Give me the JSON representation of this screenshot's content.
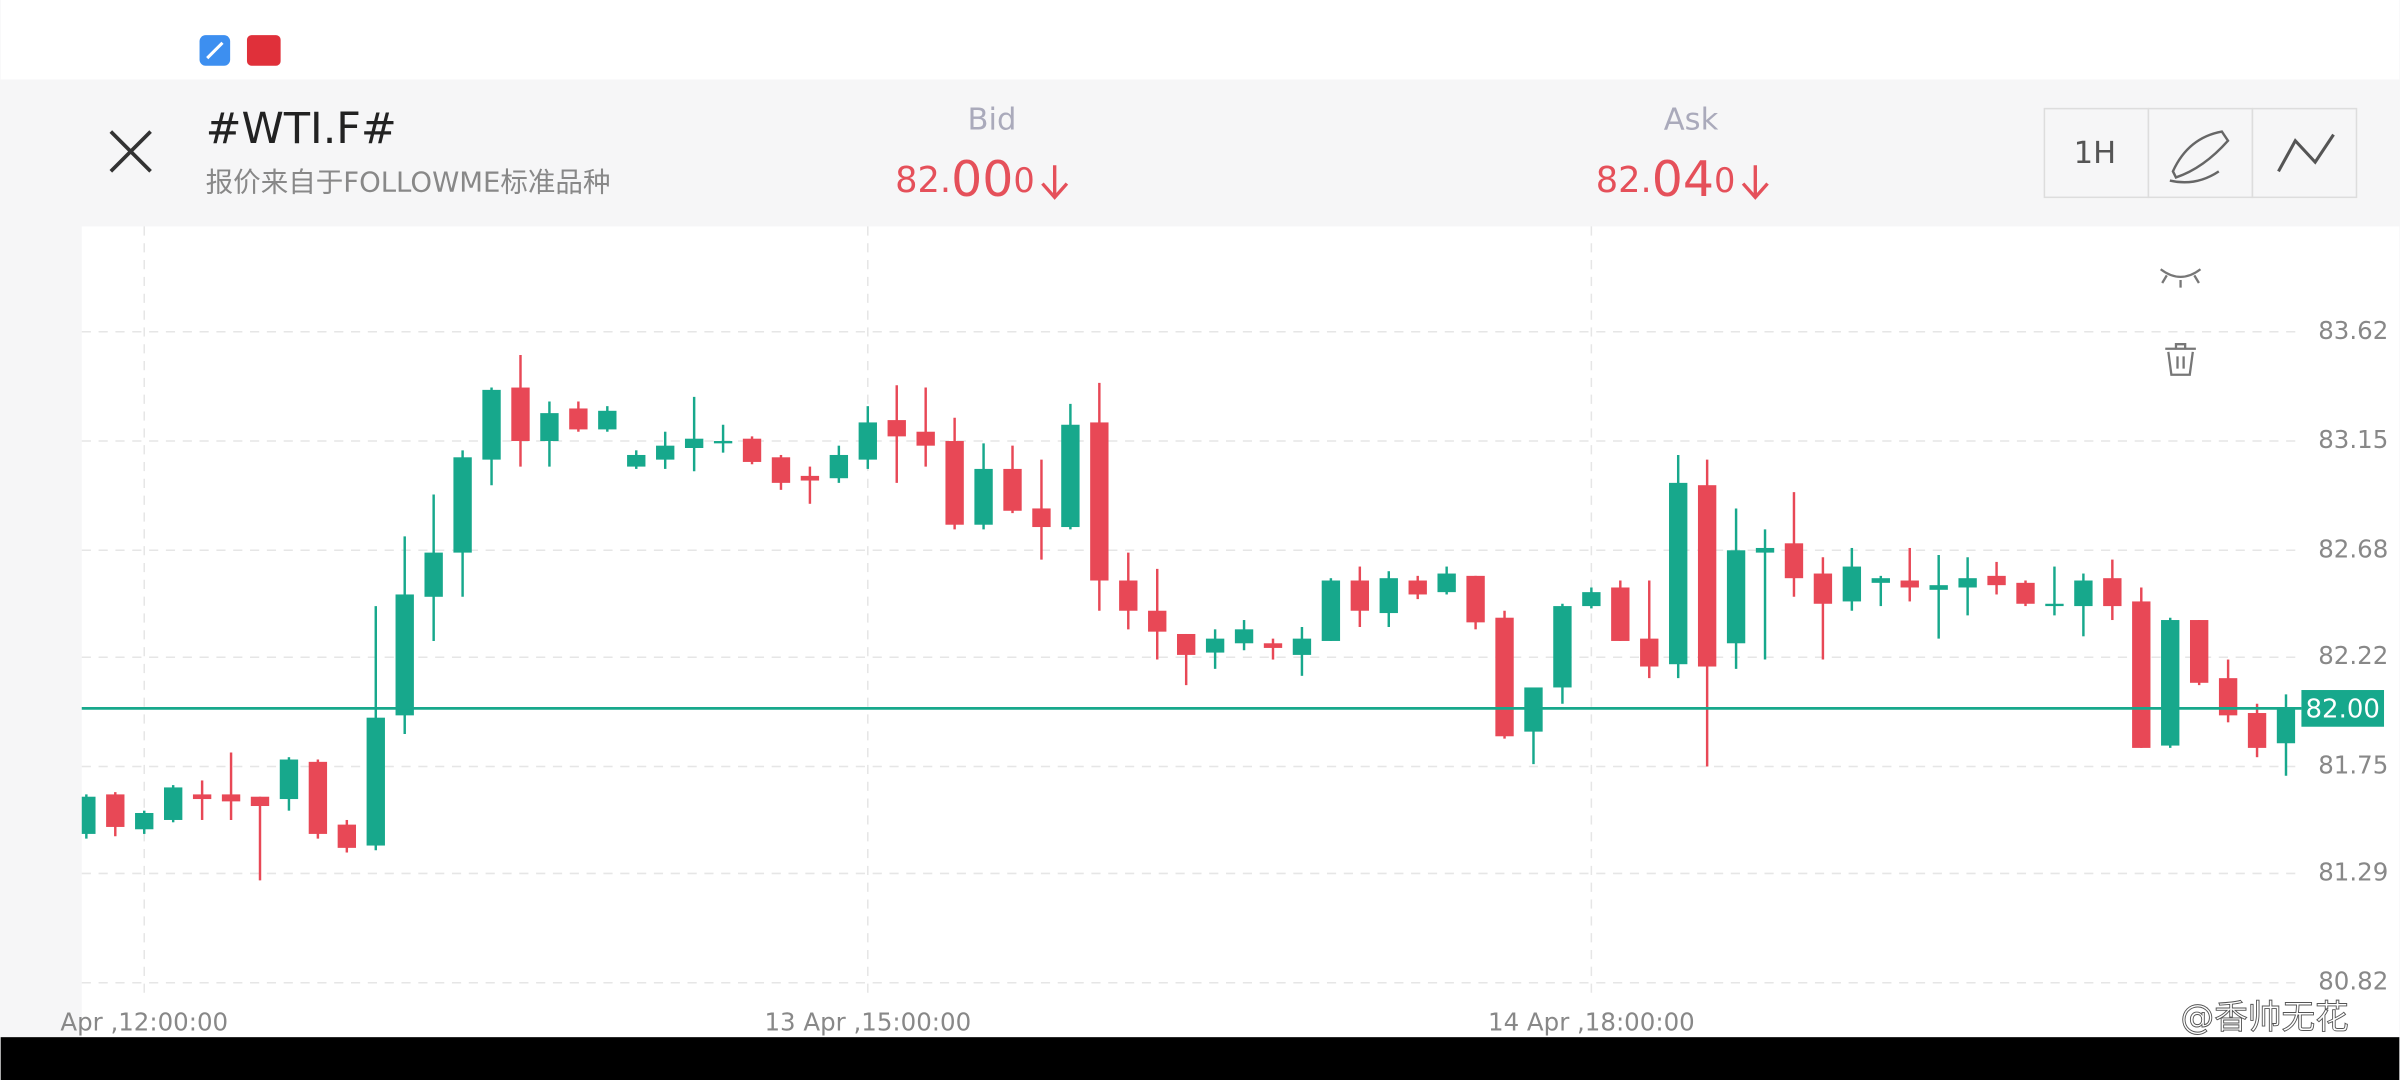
{
  "header": {
    "title": "#WTI.F#",
    "subtitle": "报价来自于FOLLOWME标准品种",
    "bid": {
      "label": "Bid",
      "parts": [
        "82.",
        "00",
        "0"
      ]
    },
    "ask": {
      "label": "Ask",
      "parts": [
        "82.",
        "04",
        "0"
      ]
    },
    "timeframe": "1H"
  },
  "watermark": "@香帅无花",
  "chart_data": {
    "type": "candlestick",
    "categories": [
      null,
      null,
      "Apr ,12:00:00",
      null,
      null,
      null,
      null,
      null,
      null,
      null,
      null,
      null,
      null,
      null,
      null,
      null,
      null,
      null,
      null,
      null,
      null,
      null,
      null,
      null,
      null,
      null,
      null,
      "13 Apr ,15:00:00",
      null,
      null,
      null,
      null,
      null,
      null,
      null,
      null,
      null,
      null,
      null,
      null,
      null,
      null,
      null,
      null,
      null,
      null,
      null,
      null,
      null,
      null,
      null,
      null,
      "14 Apr ,18:00:00",
      null,
      null,
      null,
      null,
      null,
      null,
      null,
      null,
      null,
      null,
      null,
      null,
      null,
      null,
      null,
      null,
      null,
      null,
      null,
      null,
      null,
      null,
      null,
      null
    ],
    "open": [
      81.46,
      81.63,
      81.48,
      81.52,
      81.63,
      81.63,
      81.62,
      81.61,
      81.77,
      81.5,
      81.41,
      81.97,
      82.48,
      82.67,
      83.07,
      83.38,
      83.15,
      83.29,
      83.2,
      83.04,
      83.07,
      83.12,
      83.14,
      83.16,
      83.08,
      83.0,
      82.99,
      83.07,
      83.24,
      83.19,
      83.15,
      82.79,
      83.03,
      82.86,
      82.78,
      83.23,
      82.55,
      82.42,
      82.32,
      82.24,
      82.28,
      82.28,
      82.23,
      82.29,
      82.55,
      82.41,
      82.55,
      82.5,
      82.57,
      82.39,
      81.9,
      82.09,
      82.44,
      82.52,
      82.3,
      82.19,
      82.96,
      82.28,
      82.67,
      82.71,
      82.58,
      82.46,
      82.54,
      82.55,
      82.51,
      82.52,
      82.57,
      82.54,
      82.44,
      82.44,
      82.56,
      82.46,
      81.84,
      82.38,
      82.13,
      81.98,
      81.85
    ],
    "high": [
      81.63,
      81.64,
      81.56,
      81.67,
      81.69,
      81.81,
      81.62,
      81.79,
      81.78,
      81.52,
      82.44,
      82.74,
      82.92,
      83.11,
      83.38,
      83.52,
      83.32,
      83.32,
      83.3,
      83.11,
      83.19,
      83.34,
      83.22,
      83.17,
      83.09,
      83.04,
      83.13,
      83.3,
      83.39,
      83.38,
      83.25,
      83.14,
      83.13,
      83.07,
      83.31,
      83.4,
      82.67,
      82.6,
      82.32,
      82.34,
      82.38,
      82.3,
      82.35,
      82.56,
      82.61,
      82.59,
      82.57,
      82.61,
      82.57,
      82.42,
      82.09,
      82.45,
      82.52,
      82.55,
      82.55,
      83.09,
      83.07,
      82.86,
      82.77,
      82.93,
      82.65,
      82.69,
      82.57,
      82.69,
      82.66,
      82.65,
      82.63,
      82.55,
      82.61,
      82.58,
      82.64,
      82.52,
      82.39,
      82.38,
      82.21,
      82.02,
      82.06
    ],
    "low": [
      81.44,
      81.45,
      81.46,
      81.51,
      81.52,
      81.52,
      81.26,
      81.56,
      81.44,
      81.38,
      81.39,
      81.89,
      82.29,
      82.48,
      82.96,
      83.04,
      83.04,
      83.19,
      83.19,
      83.03,
      83.03,
      83.02,
      83.1,
      83.05,
      82.94,
      82.88,
      82.97,
      83.03,
      82.97,
      83.04,
      82.77,
      82.77,
      82.84,
      82.64,
      82.77,
      82.42,
      82.34,
      82.21,
      82.1,
      82.17,
      82.25,
      82.21,
      82.14,
      82.29,
      82.35,
      82.35,
      82.47,
      82.49,
      82.34,
      81.87,
      81.76,
      82.02,
      82.43,
      82.29,
      82.13,
      82.13,
      81.75,
      82.17,
      82.21,
      82.48,
      82.21,
      82.42,
      82.44,
      82.46,
      82.3,
      82.4,
      82.49,
      82.44,
      82.4,
      82.31,
      82.38,
      81.83,
      81.83,
      82.1,
      81.94,
      81.79,
      81.71
    ],
    "close": [
      81.62,
      81.49,
      81.55,
      81.66,
      81.61,
      81.6,
      81.58,
      81.78,
      81.46,
      81.4,
      81.96,
      82.49,
      82.67,
      83.08,
      83.37,
      83.15,
      83.27,
      83.2,
      83.28,
      83.09,
      83.13,
      83.16,
      83.15,
      83.06,
      82.97,
      82.98,
      83.09,
      83.23,
      83.17,
      83.13,
      82.79,
      83.03,
      82.85,
      82.78,
      83.22,
      82.55,
      82.42,
      82.33,
      82.23,
      82.3,
      82.34,
      82.26,
      82.3,
      82.55,
      82.42,
      82.56,
      82.49,
      82.58,
      82.37,
      81.88,
      82.09,
      82.44,
      82.5,
      82.29,
      82.18,
      82.97,
      82.18,
      82.68,
      82.69,
      82.56,
      82.45,
      82.61,
      82.56,
      82.52,
      82.53,
      82.56,
      82.53,
      82.45,
      82.45,
      82.55,
      82.44,
      81.83,
      82.38,
      82.11,
      81.97,
      81.83,
      82.0
    ],
    "up_color": "#17a88c",
    "down_color": "#e84856",
    "ylim": [
      80.77,
      84.06
    ],
    "yticks": [
      80.82,
      81.29,
      81.75,
      82.22,
      82.68,
      83.15,
      83.62
    ],
    "grid": true,
    "price_line": {
      "value": 82.0,
      "label": "82.00"
    }
  }
}
